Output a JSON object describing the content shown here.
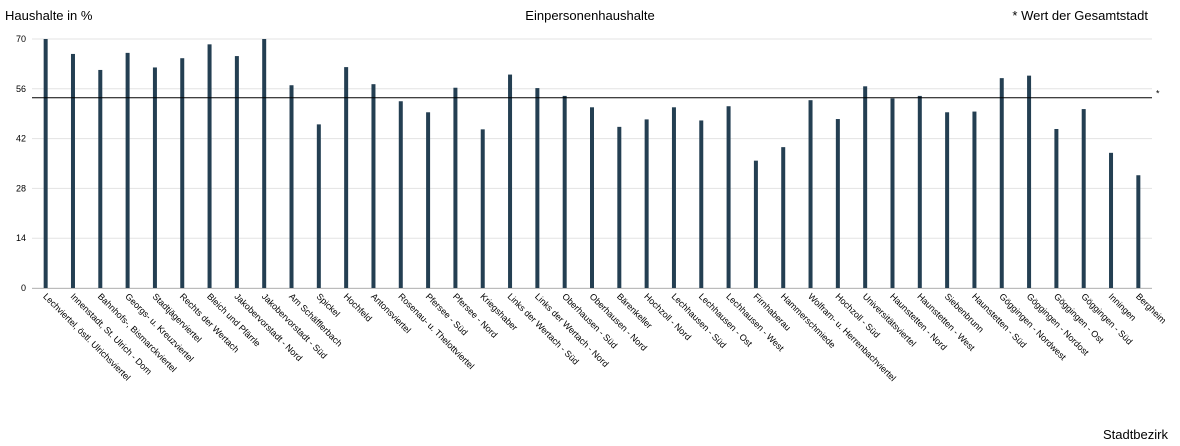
{
  "header": {
    "ylabel": "Haushalte in %",
    "title": "Einpersonenhaushalte",
    "note": "* Wert der Gesamtstadt"
  },
  "footer": {
    "xlabel": "Stadtbezirk"
  },
  "chart_data": {
    "type": "bar",
    "title": "Einpersonenhaushalte",
    "ylabel": "Haushalte in %",
    "xlabel": "Stadtbezirk",
    "ylim": [
      0,
      70
    ],
    "yticks": [
      0,
      14,
      28,
      42,
      56,
      70
    ],
    "grid": true,
    "bar_color": "#243f52",
    "reference_line": {
      "value": 53.5,
      "label": "*"
    },
    "categories": [
      "Lechviertel, östl. Ulrichsviertel",
      "Innenstadt, St. Ulrich - Dom",
      "Bahnhofs-, Bismarckviertel",
      "Georgs- u. Kreuzviertel",
      "Stadtjägerviertel",
      "Rechts der Wertach",
      "Bleich und Pfärrle",
      "Jakobervorstadt - Nord",
      "Jakobervorstadt - Süd",
      "Am Schäfflerbach",
      "Spickel",
      "Hochfeld",
      "Antonsviertel",
      "Rosenau- u. Thelottviertel",
      "Pfersee - Süd",
      "Pfersee - Nord",
      "Kriegshaber",
      "Links der Wertach - Süd",
      "Links der Wertach - Nord",
      "Oberhausen - Süd",
      "Oberhausen - Nord",
      "Bärenkeller",
      "Hochzoll - Nord",
      "Lechhausen - Süd",
      "Lechhausen - Ost",
      "Lechhausen - West",
      "Firnhaberau",
      "Hammerschmiede",
      "Wolfram- u. Herrenbachviertel",
      "Hochzoll - Süd",
      "Universitätsviertel",
      "Haunstetten - Nord",
      "Haunstetten - West",
      "Siebenbrunn",
      "Haunstetten - Süd",
      "Göggingen - Nordwest",
      "Göggingen - Nordost",
      "Göggingen - Ost",
      "Göggingen - Süd",
      "Inningen",
      "Bergheim"
    ],
    "values": [
      70.0,
      65.8,
      61.3,
      66.1,
      62.0,
      64.6,
      68.5,
      65.2,
      70.0,
      57.0,
      46.0,
      62.1,
      57.3,
      52.5,
      49.4,
      56.3,
      44.6,
      60.0,
      56.2,
      54.0,
      50.8,
      45.3,
      47.4,
      50.8,
      47.1,
      51.1,
      35.8,
      39.6,
      52.8,
      47.5,
      56.7,
      53.3,
      54.0,
      49.4,
      49.6,
      59.0,
      59.7,
      44.7,
      50.3,
      38.0,
      31.7
    ]
  }
}
